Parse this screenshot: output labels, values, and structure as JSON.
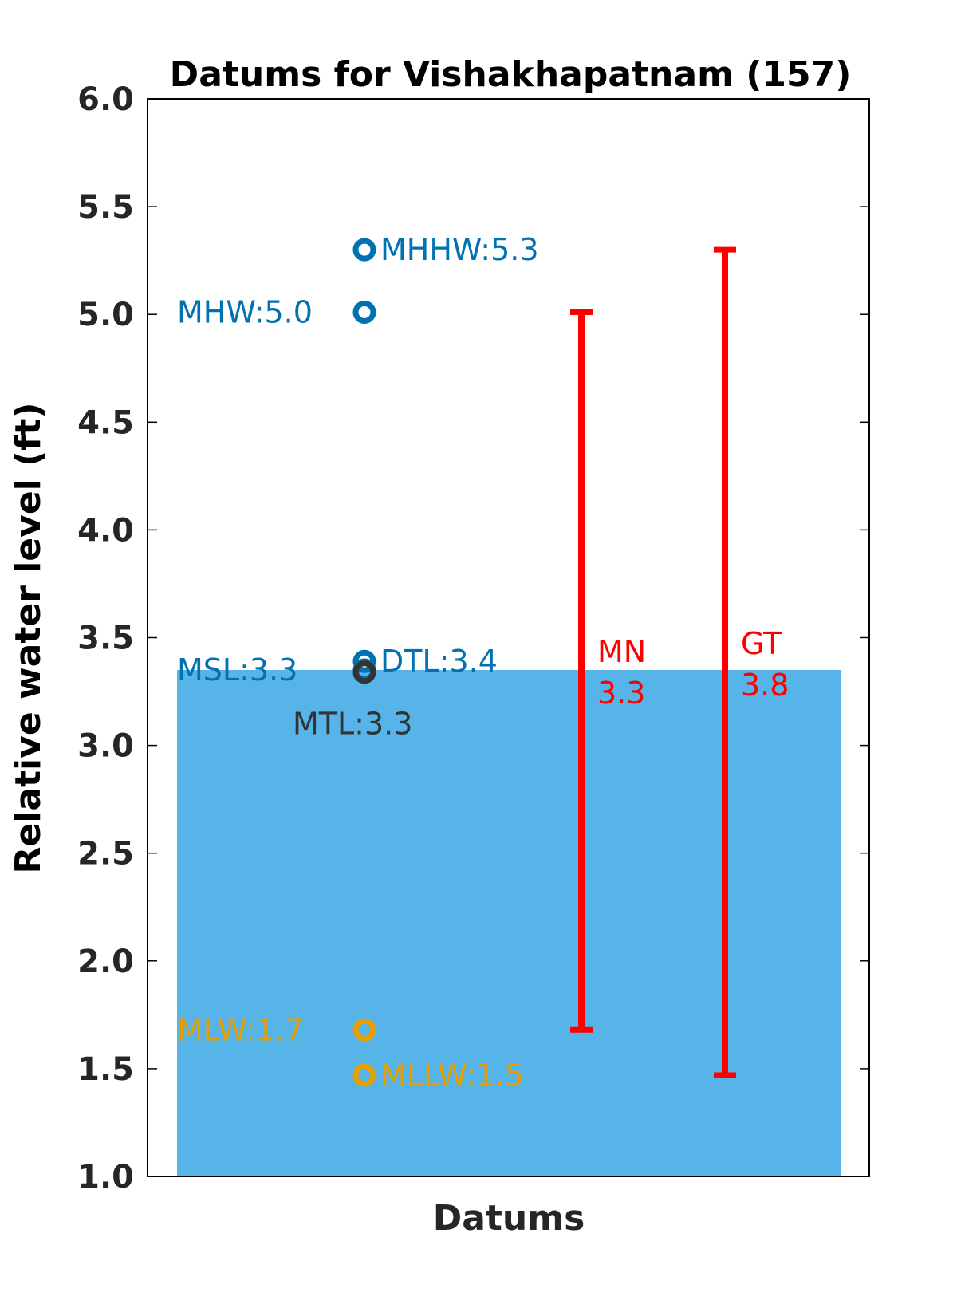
{
  "chart_data": {
    "type": "scatter",
    "title": "Datums for Vishakhapatnam (157)",
    "xlabel": "Datums",
    "ylabel": "Relative water level (ft)",
    "ylim": [
      1.0,
      6.0
    ],
    "yticks": [
      "1.0",
      "1.5",
      "2.0",
      "2.5",
      "3.0",
      "3.5",
      "4.0",
      "4.5",
      "5.0",
      "5.5",
      "6.0"
    ],
    "grid": false,
    "water_level": {
      "value": 3.35,
      "color": "#56B4E9"
    },
    "datums": [
      {
        "name": "MHHW",
        "label": "MHHW:5.3",
        "value": 5.3,
        "color": "#0072B2",
        "label_side": "right"
      },
      {
        "name": "MHW",
        "label": "MHW:5.0",
        "value": 5.01,
        "color": "#0072B2",
        "label_side": "left"
      },
      {
        "name": "DTL",
        "label": "DTL:3.4",
        "value": 3.39,
        "color": "#0072B2",
        "label_side": "right"
      },
      {
        "name": "MSL",
        "label": "MSL:3.3",
        "value": 3.35,
        "color": "#0072B2",
        "label_side": "left"
      },
      {
        "name": "MTL",
        "label": "MTL:3.3",
        "value": 3.34,
        "color": "#333333",
        "label_side": "below"
      },
      {
        "name": "MLW",
        "label": "MLW:1.7",
        "value": 1.68,
        "color": "#E69F00",
        "label_side": "left"
      },
      {
        "name": "MLLW",
        "label": "MLLW:1.5",
        "value": 1.47,
        "color": "#E69F00",
        "label_side": "right"
      }
    ],
    "ranges": [
      {
        "name": "MN",
        "value_text": "3.3",
        "low": 1.68,
        "high": 5.01,
        "color": "#FF0000"
      },
      {
        "name": "GT",
        "value_text": "3.8",
        "low": 1.47,
        "high": 5.3,
        "color": "#FF0000"
      }
    ]
  }
}
